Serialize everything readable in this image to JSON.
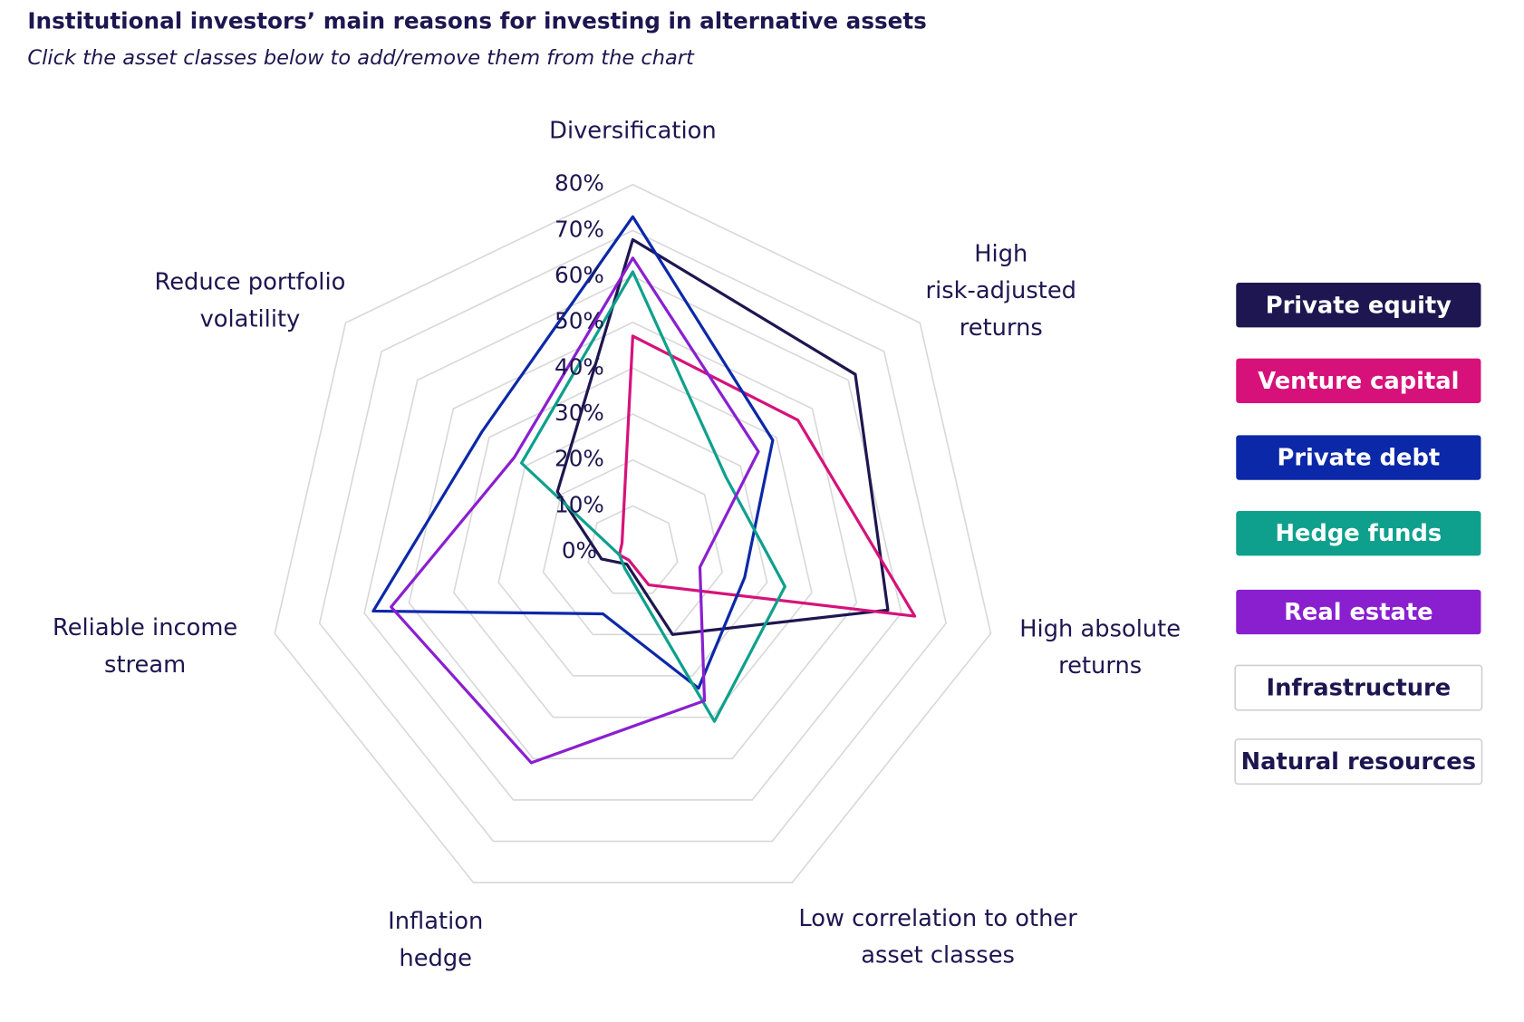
{
  "chart_data": {
    "type": "radar",
    "title": "Institutional investors’ main reasons for investing in alternative assets",
    "subtitle": "Click the asset classes below to add/remove them from the chart",
    "categories": [
      [
        "Diversification"
      ],
      [
        "High",
        "risk-adjusted",
        "returns"
      ],
      [
        "High absolute",
        "returns"
      ],
      [
        "Low correlation to other",
        "asset classes"
      ],
      [
        "Inflation",
        "hedge"
      ],
      [
        "Reliable income",
        "stream"
      ],
      [
        "Reduce portfolio",
        "volatility"
      ]
    ],
    "ylim": [
      0,
      80
    ],
    "yticks": [
      {
        "value": 0,
        "label": "0%"
      },
      {
        "value": 10,
        "label": "10%"
      },
      {
        "value": 20,
        "label": "20%"
      },
      {
        "value": 30,
        "label": "30%"
      },
      {
        "value": 40,
        "label": "40%"
      },
      {
        "value": 50,
        "label": "50%"
      },
      {
        "value": 60,
        "label": "60%"
      },
      {
        "value": 70,
        "label": "70%"
      },
      {
        "value": 80,
        "label": "80%"
      }
    ],
    "grid": true,
    "series": [
      {
        "name": "Private equity",
        "color": "#1e1650",
        "values": [
          68,
          62,
          57,
          20,
          3,
          7,
          21
        ]
      },
      {
        "name": "Venture capital",
        "color": "#d6127a",
        "values": [
          47,
          46,
          63,
          8,
          2,
          3,
          3
        ]
      },
      {
        "name": "Private debt",
        "color": "#0b28a8",
        "values": [
          73,
          39,
          25,
          33,
          15,
          58,
          42
        ]
      },
      {
        "name": "Hedge funds",
        "color": "#0ea08c",
        "values": [
          61,
          26,
          34,
          41,
          4,
          3,
          31
        ]
      },
      {
        "name": "Real estate",
        "color": "#8a1fd0",
        "values": [
          64,
          35,
          15,
          36,
          51,
          54,
          33
        ]
      }
    ],
    "hidden_series": [
      "Infrastructure",
      "Natural resources"
    ],
    "legend": "right"
  }
}
